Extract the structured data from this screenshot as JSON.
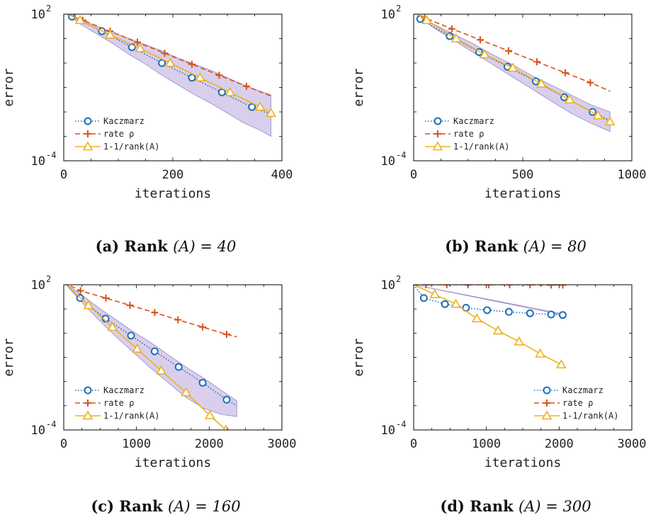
{
  "colors": {
    "kaczmarz": "#1f6fb8",
    "rate": "#d95319",
    "inv_rank": "#edb120",
    "band": "#b9a8dc",
    "band_edge": "#9a86cc",
    "axis": "#000000"
  },
  "legend_labels": {
    "kaczmarz": "Kaczmarz",
    "rate": "rate ρ",
    "inv_rank": "1-1/rank(A)"
  },
  "chart_data": [
    {
      "type": "line",
      "caption_prefix": "(a)",
      "caption_bold": "Rank",
      "caption_math": "(A) = 40",
      "xlabel": "iterations",
      "ylabel": "error",
      "yscale": "log",
      "xlim": [
        0,
        400
      ],
      "ylim_exp": [
        -4,
        2
      ],
      "xticks": [
        0,
        200,
        400
      ],
      "yticks": [
        {
          "base": "10",
          "exp": "2",
          "v": 2
        },
        {
          "base": "10",
          "exp": "-4",
          "v": -4
        }
      ],
      "legend_position": "lower-left",
      "series": [
        {
          "key": "kaczmarz",
          "marker": "circle",
          "style": "dotted",
          "x": [
            0,
            15,
            70,
            125,
            180,
            235,
            290,
            345,
            380
          ],
          "logy": [
            2.1,
            1.9,
            1.3,
            0.65,
            0.0,
            -0.6,
            -1.2,
            -1.8,
            -2.1
          ]
        },
        {
          "key": "rate",
          "marker": "plus",
          "style": "dashed",
          "x": [
            0,
            35,
            85,
            135,
            185,
            235,
            285,
            335,
            380
          ],
          "logy": [
            2.1,
            1.75,
            1.3,
            0.85,
            0.4,
            -0.05,
            -0.5,
            -0.95,
            -1.35
          ]
        },
        {
          "key": "inv_rank",
          "marker": "triangle",
          "style": "solid",
          "x": [
            0,
            30,
            85,
            140,
            195,
            250,
            305,
            360,
            380
          ],
          "logy": [
            2.1,
            1.75,
            1.15,
            0.6,
            0.0,
            -0.6,
            -1.2,
            -1.8,
            -2.05
          ]
        }
      ],
      "band": {
        "x": [
          0,
          30,
          60,
          90,
          120,
          150,
          180,
          210,
          240,
          270,
          300,
          330,
          360,
          380
        ],
        "upper": [
          2.1,
          1.8,
          1.5,
          1.25,
          1.0,
          0.75,
          0.5,
          0.2,
          -0.05,
          -0.3,
          -0.6,
          -0.9,
          -1.15,
          -1.3
        ],
        "lower": [
          2.1,
          1.6,
          1.2,
          0.8,
          0.35,
          -0.05,
          -0.5,
          -0.9,
          -1.3,
          -1.65,
          -2.05,
          -2.45,
          -2.75,
          -3.0
        ]
      }
    },
    {
      "type": "line",
      "caption_prefix": "(b)",
      "caption_bold": "Rank",
      "caption_math": "(A) = 80",
      "xlabel": "iterations",
      "ylabel": "error",
      "yscale": "log",
      "xlim": [
        0,
        1000
      ],
      "ylim_exp": [
        -4,
        2
      ],
      "xticks": [
        0,
        500,
        1000
      ],
      "yticks": [
        {
          "base": "10",
          "exp": "2",
          "v": 2
        },
        {
          "base": "10",
          "exp": "-4",
          "v": -4
        }
      ],
      "legend_position": "lower-left",
      "series": [
        {
          "key": "kaczmarz",
          "marker": "circle",
          "style": "dotted",
          "x": [
            0,
            30,
            165,
            300,
            430,
            560,
            690,
            820,
            900
          ],
          "logy": [
            2.1,
            1.8,
            1.1,
            0.45,
            -0.15,
            -0.75,
            -1.4,
            -2.0,
            -2.35
          ]
        },
        {
          "key": "rate",
          "marker": "plus",
          "style": "dashed",
          "x": [
            0,
            50,
            175,
            305,
            435,
            565,
            695,
            810,
            900
          ],
          "logy": [
            2.1,
            1.85,
            1.4,
            0.95,
            0.5,
            0.05,
            -0.4,
            -0.8,
            -1.15
          ]
        },
        {
          "key": "inv_rank",
          "marker": "triangle",
          "style": "solid",
          "x": [
            0,
            60,
            195,
            325,
            455,
            585,
            715,
            845,
            900
          ],
          "logy": [
            2.1,
            1.75,
            1.0,
            0.35,
            -0.2,
            -0.85,
            -1.5,
            -2.15,
            -2.4
          ]
        }
      ],
      "band": {
        "x": [
          0,
          90,
          180,
          270,
          360,
          450,
          540,
          630,
          720,
          810,
          900
        ],
        "upper": [
          2.1,
          1.6,
          1.2,
          0.8,
          0.35,
          -0.05,
          -0.5,
          -0.9,
          -1.3,
          -1.7,
          -2.0
        ],
        "lower": [
          2.1,
          1.45,
          0.95,
          0.45,
          -0.05,
          -0.55,
          -1.05,
          -1.55,
          -2.05,
          -2.45,
          -2.8
        ]
      }
    },
    {
      "type": "line",
      "caption_prefix": "(c)",
      "caption_bold": "Rank",
      "caption_math": "(A) = 160",
      "xlabel": "iterations",
      "ylabel": "error",
      "yscale": "log",
      "xlim": [
        0,
        3000
      ],
      "ylim_exp": [
        -4,
        2
      ],
      "xticks": [
        0,
        1000,
        2000,
        3000
      ],
      "yticks": [
        {
          "base": "10",
          "exp": "2",
          "v": 2
        },
        {
          "base": "10",
          "exp": "-4",
          "v": -4
        }
      ],
      "legend_position": "lower-left",
      "series": [
        {
          "key": "kaczmarz",
          "marker": "circle",
          "style": "dotted",
          "x": [
            0,
            225,
            575,
            925,
            1250,
            1580,
            1910,
            2240,
            2380
          ],
          "logy": [
            2.1,
            1.45,
            0.6,
            -0.1,
            -0.75,
            -1.4,
            -2.05,
            -2.75,
            -3.0
          ]
        },
        {
          "key": "rate",
          "marker": "plus",
          "style": "dashed",
          "x": [
            0,
            230,
            580,
            910,
            1250,
            1570,
            1910,
            2240,
            2380
          ],
          "logy": [
            2.1,
            1.75,
            1.45,
            1.15,
            0.85,
            0.55,
            0.25,
            -0.05,
            -0.15
          ]
        },
        {
          "key": "inv_rank",
          "marker": "triangle",
          "style": "solid",
          "x": [
            0,
            340,
            670,
            1010,
            1340,
            1680,
            2010,
            2230
          ],
          "logy": [
            2.1,
            1.15,
            0.25,
            -0.65,
            -1.55,
            -2.45,
            -3.4,
            -4.0
          ]
        }
      ],
      "band": {
        "x": [
          0,
          240,
          480,
          720,
          960,
          1200,
          1440,
          1680,
          1920,
          2160,
          2380
        ],
        "upper": [
          2.1,
          1.6,
          1.05,
          0.55,
          0.05,
          -0.4,
          -0.9,
          -1.4,
          -1.85,
          -2.35,
          -2.8
        ],
        "lower": [
          2.1,
          1.3,
          0.55,
          -0.15,
          -0.8,
          -1.45,
          -2.05,
          -2.65,
          -3.1,
          -3.35,
          -3.45
        ]
      }
    },
    {
      "type": "line",
      "caption_prefix": "(d)",
      "caption_bold": "Rank",
      "caption_math": "(A) = 300",
      "xlabel": "iterations",
      "ylabel": "error",
      "yscale": "log",
      "xlim": [
        0,
        3000
      ],
      "ylim_exp": [
        -4,
        2
      ],
      "xticks": [
        0,
        1000,
        2000,
        3000
      ],
      "yticks": [
        {
          "base": "10",
          "exp": "2",
          "v": 2
        },
        {
          "base": "10",
          "exp": "-4",
          "v": -4
        }
      ],
      "legend_position": "lower-right",
      "series": [
        {
          "key": "kaczmarz",
          "marker": "circle",
          "style": "dotted",
          "x": [
            0,
            140,
            430,
            720,
            1010,
            1310,
            1600,
            1890,
            2050
          ],
          "logy": [
            2.0,
            1.45,
            1.2,
            1.05,
            0.95,
            0.88,
            0.82,
            0.77,
            0.75
          ]
        },
        {
          "key": "rate",
          "marker": "plus",
          "style": "dashed",
          "x": [
            0,
            170,
            455,
            745,
            1030,
            1320,
            1600,
            1890,
            2050
          ],
          "logy": [
            2.0,
            2.0,
            2.0,
            2.0,
            2.0,
            2.0,
            2.0,
            1.99,
            1.99
          ]
        },
        {
          "key": "inv_rank",
          "marker": "triangle",
          "style": "solid",
          "x": [
            0,
            290,
            580,
            870,
            1160,
            1450,
            1740,
            2030
          ],
          "logy": [
            2.0,
            1.6,
            1.2,
            0.6,
            0.1,
            -0.35,
            -0.85,
            -1.3
          ]
        }
      ],
      "band": {
        "x": [
          0,
          2050
        ],
        "upper": [
          2.0,
          0.8
        ],
        "lower": [
          2.0,
          0.75
        ]
      }
    }
  ]
}
